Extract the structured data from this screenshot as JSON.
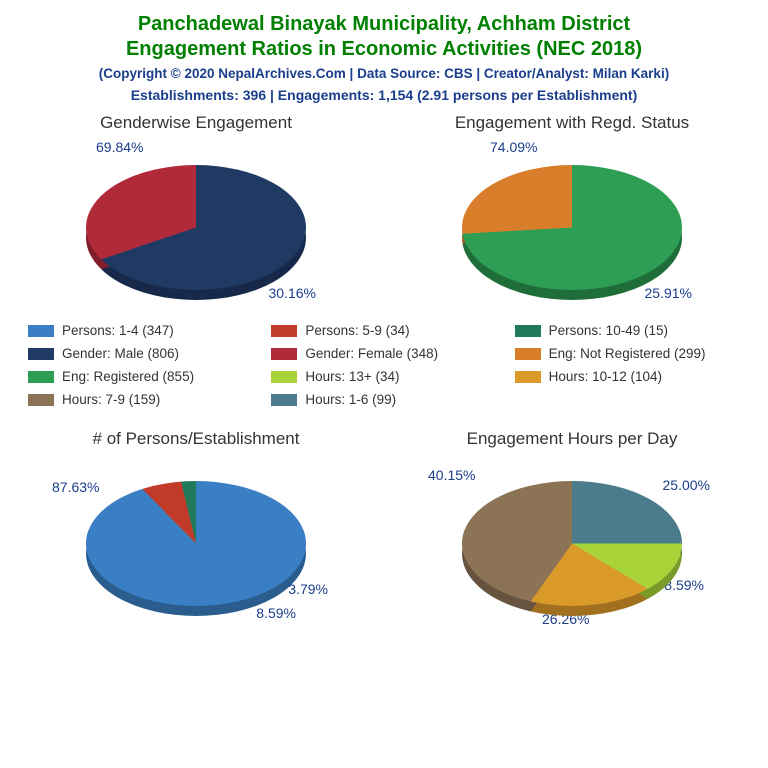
{
  "header": {
    "title_line1": "Panchadewal Binayak Municipality, Achham District",
    "title_line2": "Engagement Ratios in Economic Activities (NEC 2018)",
    "source": "(Copyright © 2020 NepalArchives.Com | Data Source: CBS | Creator/Analyst: Milan Karki)",
    "stats": "Establishments: 396 | Engagements: 1,154 (2.91 persons per Establishment)",
    "title_color": "#008000",
    "title_fontsize": 20,
    "subtitle_color": "#1a3e8c",
    "subtitle_fontsize": 13.5,
    "stats_fontsize": 14
  },
  "background_color": "#ffffff",
  "label_color": "#1a3e8c",
  "label_fontsize": 14,
  "charts": {
    "gender": {
      "title": "Genderwise Engagement",
      "type": "pie",
      "slices": [
        {
          "label": "69.84%",
          "value": 69.84,
          "color": "#1f3a63",
          "rim": "#16294a"
        },
        {
          "label": "30.16%",
          "value": 30.16,
          "color": "#b02a3a",
          "rim": "#7d1e2a"
        }
      ]
    },
    "regd": {
      "title": "Engagement with Regd. Status",
      "type": "pie",
      "slices": [
        {
          "label": "74.09%",
          "value": 74.09,
          "color": "#2e9e54",
          "rim": "#1f6e3a"
        },
        {
          "label": "25.91%",
          "value": 25.91,
          "color": "#d87d2a",
          "rim": "#a05a1d"
        }
      ]
    },
    "persons": {
      "title": "# of Persons/Establishment",
      "type": "pie",
      "slices": [
        {
          "label": "87.63%",
          "value": 87.63,
          "color": "#3a7fc4",
          "rim": "#2a5c8e"
        },
        {
          "label": "8.59%",
          "value": 8.59,
          "color": "#c13a2a",
          "rim": "#8c2a1e"
        },
        {
          "label": "3.79%",
          "value": 3.79,
          "color": "#1f7a5a",
          "rim": "#155640"
        }
      ]
    },
    "hours": {
      "title": "Engagement Hours per Day",
      "type": "pie",
      "slices": [
        {
          "label": "25.00%",
          "value": 25.0,
          "color": "#4a7c8c",
          "rim": "#355a66"
        },
        {
          "label": "8.59%",
          "value": 8.59,
          "color": "#a8d43a",
          "rim": "#7a9a2a"
        },
        {
          "label": "26.26%",
          "value": 26.26,
          "color": "#d99a2a",
          "rim": "#a0701e"
        },
        {
          "label": "40.15%",
          "value": 40.15,
          "color": "#8c7355",
          "rim": "#665340"
        }
      ]
    }
  },
  "legend": [
    {
      "label": "Persons: 1-4 (347)",
      "color": "#3a7fc4"
    },
    {
      "label": "Persons: 5-9 (34)",
      "color": "#c13a2a"
    },
    {
      "label": "Persons: 10-49 (15)",
      "color": "#1f7a5a"
    },
    {
      "label": "Gender: Male (806)",
      "color": "#1f3a63"
    },
    {
      "label": "Gender: Female (348)",
      "color": "#b02a3a"
    },
    {
      "label": "Eng: Not Registered (299)",
      "color": "#d87d2a"
    },
    {
      "label": "Eng: Registered (855)",
      "color": "#2e9e54"
    },
    {
      "label": "Hours: 13+ (34)",
      "color": "#a8d43a"
    },
    {
      "label": "Hours: 10-12 (104)",
      "color": "#d99a2a"
    },
    {
      "label": "Hours: 7-9 (159)",
      "color": "#8c7355"
    },
    {
      "label": "Hours: 1-6 (99)",
      "color": "#4a7c8c"
    }
  ]
}
